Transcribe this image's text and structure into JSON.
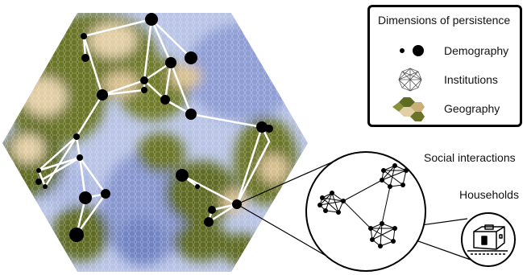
{
  "legend": {
    "title": "Dimensions of persistence",
    "items": [
      {
        "label": "Demography",
        "icon": "dot-pair-icon"
      },
      {
        "label": "Institutions",
        "icon": "network-icon"
      },
      {
        "label": "Geography",
        "icon": "terrain-hex-icon"
      }
    ]
  },
  "callouts": {
    "social": "Social interactions",
    "households": "Households"
  },
  "colors": {
    "water": "#b9c4e6",
    "deep_water": "#6f82c2",
    "forest": "#5e6b22",
    "sand": "#e3cfa5",
    "link": "#ffffff",
    "node": "#000000"
  }
}
